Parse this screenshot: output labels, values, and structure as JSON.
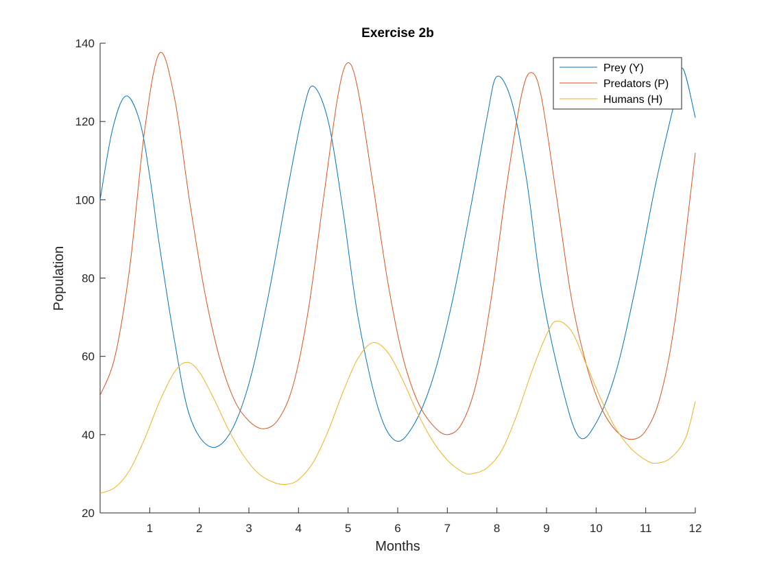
{
  "chart_data": {
    "type": "line",
    "title": "Exercise 2b",
    "xlabel": "Months",
    "ylabel": "Population",
    "xlim": [
      0,
      12
    ],
    "ylim": [
      20,
      140
    ],
    "xticks": [
      1,
      2,
      3,
      4,
      5,
      6,
      7,
      8,
      9,
      10,
      11,
      12
    ],
    "yticks": [
      20,
      40,
      60,
      80,
      100,
      120,
      140
    ],
    "grid": false,
    "legend_position": "top-right",
    "series": [
      {
        "name": "Prey (Y)",
        "color": "#0072BD",
        "x": [
          0,
          0.25,
          0.52,
          0.8,
          1.0,
          1.2,
          1.5,
          1.8,
          2.2,
          2.6,
          3.0,
          3.4,
          3.8,
          4.1,
          4.3,
          4.6,
          4.9,
          5.2,
          5.6,
          5.95,
          6.3,
          6.7,
          7.1,
          7.5,
          7.8,
          8.0,
          8.3,
          8.6,
          8.9,
          9.3,
          9.65,
          10.0,
          10.4,
          10.8,
          11.2,
          11.6,
          11.75,
          12.0
        ],
        "y": [
          100,
          118,
          126.5,
          120,
          106,
          88,
          64,
          45,
          37,
          40,
          53,
          76,
          104,
          123,
          129,
          120,
          97,
          70,
          47,
          38.5,
          42,
          54,
          74,
          100,
          121,
          131.5,
          125,
          105,
          77,
          53,
          39.5,
          43,
          56,
          78,
          104,
          126,
          133.5,
          121
        ]
      },
      {
        "name": "Predators (P)",
        "color": "#D95319",
        "x": [
          0,
          0.3,
          0.6,
          0.9,
          1.2,
          1.5,
          1.8,
          2.1,
          2.4,
          2.7,
          3.0,
          3.3,
          3.6,
          3.9,
          4.2,
          4.5,
          4.8,
          5.0,
          5.2,
          5.5,
          5.8,
          6.1,
          6.4,
          6.7,
          7.0,
          7.3,
          7.6,
          7.9,
          8.2,
          8.5,
          8.7,
          8.9,
          9.2,
          9.5,
          9.8,
          10.1,
          10.4,
          10.7,
          11.0,
          11.3,
          11.6,
          12.0
        ],
        "y": [
          50,
          60,
          83,
          118,
          137.5,
          126,
          100,
          77,
          60,
          49,
          43.5,
          41.5,
          44,
          53,
          72,
          100,
          127,
          135,
          128,
          104,
          79,
          60,
          48.5,
          42.5,
          40,
          43,
          54,
          76,
          104,
          127,
          132.5,
          126,
          101,
          75,
          58,
          47,
          41,
          38.8,
          41,
          50,
          70,
          112
        ]
      },
      {
        "name": "Humans (H)",
        "color": "#EDB120",
        "x": [
          0,
          0.3,
          0.6,
          0.9,
          1.2,
          1.5,
          1.75,
          2.0,
          2.3,
          2.6,
          2.9,
          3.2,
          3.5,
          3.75,
          4.0,
          4.3,
          4.6,
          4.9,
          5.2,
          5.5,
          5.8,
          6.1,
          6.4,
          6.7,
          7.0,
          7.3,
          7.5,
          7.8,
          8.1,
          8.4,
          8.7,
          9.0,
          9.2,
          9.5,
          9.8,
          10.1,
          10.4,
          10.7,
          11.0,
          11.2,
          11.5,
          11.8,
          12.0
        ],
        "y": [
          25,
          26.5,
          31,
          39,
          48.5,
          56,
          58.5,
          56,
          49,
          41,
          34.5,
          30,
          27.8,
          27.3,
          28.5,
          33,
          41,
          51,
          59.5,
          63.5,
          61,
          54,
          45.5,
          38.5,
          33.5,
          30.5,
          30,
          31.5,
          36,
          45,
          56,
          65.5,
          69,
          66.5,
          58,
          49,
          41.5,
          36.5,
          33.5,
          32.7,
          34,
          39,
          48.5
        ]
      }
    ]
  }
}
